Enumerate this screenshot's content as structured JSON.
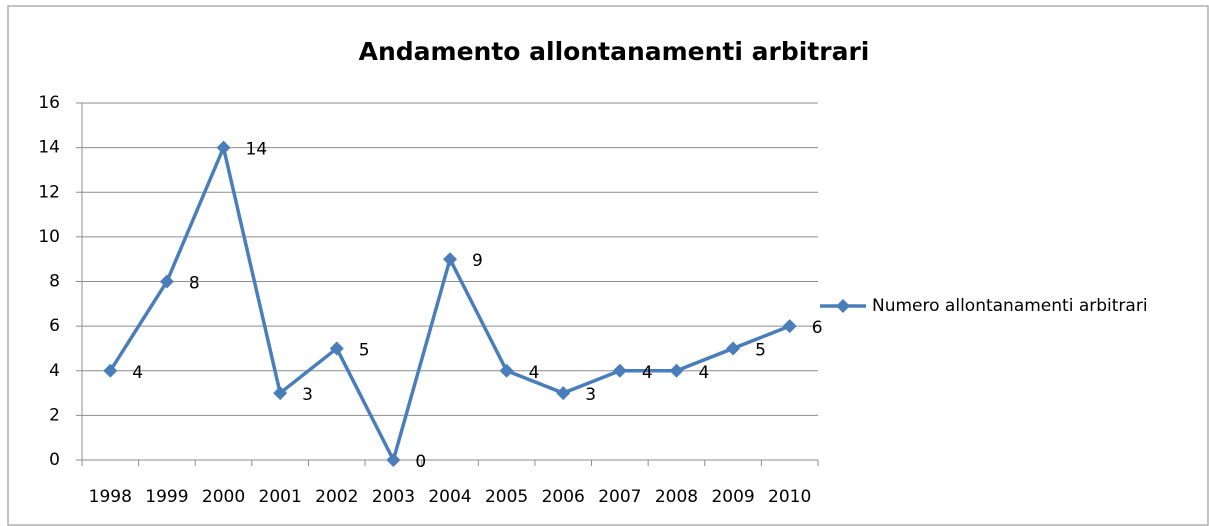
{
  "chart_data": {
    "type": "line",
    "title": "Andamento allontanamenti arbitrari",
    "categories": [
      "1998",
      "1999",
      "2000",
      "2001",
      "2002",
      "2003",
      "2004",
      "2005",
      "2006",
      "2007",
      "2008",
      "2009",
      "2010"
    ],
    "series": [
      {
        "name": "Numero allontanamenti arbitrari",
        "color": "#4a7ebb",
        "values": [
          4,
          8,
          14,
          3,
          5,
          0,
          9,
          4,
          3,
          4,
          4,
          5,
          6
        ]
      }
    ],
    "ylim": [
      0,
      16
    ],
    "yticks": [
      0,
      2,
      4,
      6,
      8,
      10,
      12,
      14,
      16
    ],
    "grid": true,
    "data_labels": true,
    "legend": "right"
  }
}
